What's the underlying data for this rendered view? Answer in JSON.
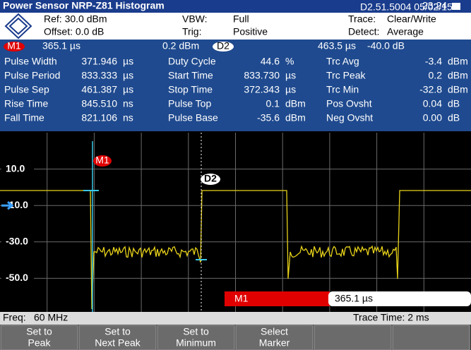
{
  "header": {
    "title": "Power Sensor NRP-Z81 Histogram",
    "version": "D2.51.5004 05/02/15",
    "time": "23:24"
  },
  "settings": [
    [
      "Ref: 30.0 dBm",
      "VBW:",
      "Full",
      "Trace:",
      "Clear/Write"
    ],
    [
      "Offset: 0.0 dB",
      "Trig:",
      "Positive",
      "Detect:",
      "Average"
    ]
  ],
  "markers": {
    "m1": {
      "label": "M1",
      "position": "365.1 µs",
      "level": "0.2 dBm"
    },
    "d2": {
      "label": "D2",
      "position": "463.5 µs",
      "level": "-40.0 dB"
    }
  },
  "measurements": [
    [
      "Pulse Width",
      "371.946",
      "µs",
      "Duty Cycle",
      "44.6",
      "%",
      "Trc Avg",
      "-3.4",
      "dBm"
    ],
    [
      "Pulse Period",
      "833.333",
      "µs",
      "Start Time",
      "833.730",
      "µs",
      "Trc Peak",
      "0.2",
      "dBm"
    ],
    [
      "Pulse Sep",
      "461.387",
      "µs",
      "Stop Time",
      "372.343",
      "µs",
      "Trc Min",
      "-32.8",
      "dBm"
    ],
    [
      "Rise Time",
      "845.510",
      "ns",
      "Pulse Top",
      "0.1",
      "dBm",
      "Pos Ovsht",
      "0.04",
      "dB"
    ],
    [
      "Fall Time",
      "821.106",
      "ns",
      "Pulse Base",
      "-35.6",
      "dBm",
      "Neg Ovsht",
      "0.00",
      "dB"
    ]
  ],
  "plot": {
    "y_labels": [
      "10.0",
      "-10.0",
      "-30.0",
      "-50.0"
    ],
    "marker_labels": [
      "M1",
      "D2"
    ]
  },
  "marker_bar": {
    "name": "M1",
    "value": "365.1 µs"
  },
  "status": {
    "freq_label": "Freq:",
    "freq": "60 MHz",
    "trace_time": "Trace Time: 2 ms"
  },
  "softkeys": [
    [
      "Set to",
      "Peak"
    ],
    [
      "Set to",
      "Next Peak"
    ],
    [
      "Set to",
      "Minimum"
    ],
    [
      "Select",
      "Marker"
    ]
  ]
}
